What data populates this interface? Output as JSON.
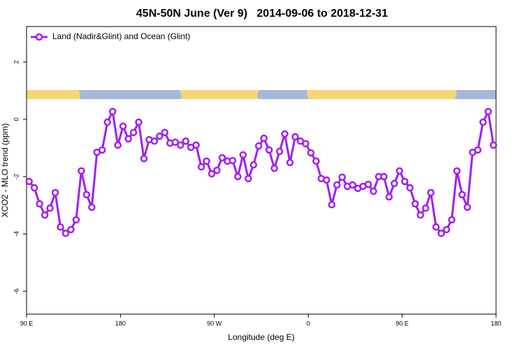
{
  "chart_data": {
    "type": "line",
    "title": "45N-50N June (Ver 9)   2014-09-06 to 2018-12-31",
    "x_label": "Longitude (deg E)",
    "y_label": "XCO2 - MLO trend (ppm)",
    "xlim": [
      90,
      540
    ],
    "xticks": [
      {
        "value": 90,
        "label": "90 E"
      },
      180,
      {
        "value": 270,
        "label": "90 W"
      },
      {
        "value": 360,
        "label": "0"
      },
      {
        "value": 450,
        "label": "90 E"
      },
      {
        "value": 540,
        "label": "180"
      }
    ],
    "ylim": [
      -6.8,
      3.24
    ],
    "yticks": [
      2,
      0,
      -2,
      -4,
      -6
    ],
    "legend": "topleft",
    "x": [
      92.5,
      97.5,
      102.5,
      107.5,
      112.5,
      117.5,
      122.5,
      127.5,
      132.5,
      137.5,
      142.5,
      147.5,
      152.5,
      157.5,
      162.5,
      167.5,
      172.5,
      177.5,
      182.5,
      187.5,
      192.5,
      197.5,
      202.5,
      207.5,
      212.5,
      217.5,
      222.5,
      227.5,
      232.5,
      237.5,
      242.5,
      247.5,
      252.5,
      257.5,
      262.5,
      267.5,
      272.5,
      277.5,
      282.5,
      287.5,
      292.5,
      297.5,
      302.5,
      307.5,
      312.5,
      317.5,
      322.5,
      327.5,
      332.5,
      337.5,
      342.5,
      347.5,
      352.5,
      357.5,
      362.5,
      367.5,
      372.5,
      377.5,
      382.5,
      387.5,
      392.5,
      397.5,
      402.5,
      407.5,
      412.5,
      417.5,
      422.5,
      427.5,
      432.5,
      437.5,
      442.5,
      447.5,
      452.5,
      457.5,
      462.5,
      467.5,
      472.5,
      477.5,
      482.5,
      487.5,
      492.5,
      497.5,
      502.5,
      507.5,
      512.5,
      517.5,
      522.5,
      527.5,
      532.5,
      537.5
    ],
    "series": [
      {
        "name": "Land (Nadir&Glint) and Ocean (Glint)",
        "color": "#a020f0",
        "values": [
          -2.17,
          -2.39,
          -2.95,
          -3.34,
          -3.1,
          -2.56,
          -3.76,
          -3.98,
          -3.85,
          -3.51,
          -1.8,
          -2.63,
          -3.07,
          -1.15,
          -1.07,
          -0.1,
          0.27,
          -0.9,
          -0.24,
          -0.68,
          -0.46,
          -0.1,
          -1.37,
          -0.71,
          -0.76,
          -0.59,
          -0.46,
          -0.83,
          -0.8,
          -0.9,
          -0.76,
          -0.98,
          -0.9,
          -1.66,
          -1.46,
          -1.9,
          -1.78,
          -1.34,
          -1.46,
          -1.44,
          -2.0,
          -1.24,
          -2.07,
          -1.59,
          -0.93,
          -0.66,
          -1.07,
          -1.71,
          -1.12,
          -0.51,
          -1.51,
          -0.61,
          -0.76,
          -0.85,
          -1.17,
          -1.46,
          -2.07,
          -2.12,
          -2.98,
          -2.29,
          -2.02,
          -2.34,
          -2.29,
          -2.41,
          -2.34,
          -2.27,
          -2.51,
          -2.0,
          -2.0,
          -2.71,
          -2.24,
          -1.8,
          -2.17,
          -2.39,
          -2.95,
          -3.34,
          -3.1,
          -2.56,
          -3.76,
          -3.98,
          -3.85,
          -3.51,
          -1.8,
          -2.63,
          -3.07,
          -1.15,
          -1.07,
          -0.1,
          0.27,
          -0.9
        ]
      }
    ]
  }
}
